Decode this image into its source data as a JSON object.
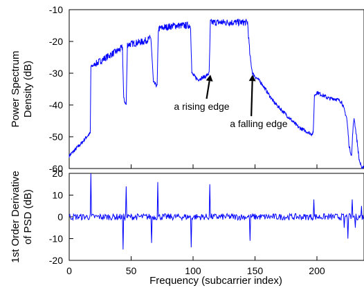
{
  "chart_data": [
    {
      "type": "line",
      "ylabel_lines": [
        "Power Spectrum",
        "Density (dB)"
      ],
      "xlim": [
        0,
        238
      ],
      "ylim": [
        -60,
        -10
      ],
      "yticks": [
        "-60",
        "-50",
        "-40",
        "-30",
        "-20",
        "-10"
      ],
      "grid": false,
      "color": "#0000ff",
      "series": [
        {
          "x": [
            0,
            5,
            10,
            14,
            17,
            17.5,
            30,
            43,
            44,
            46,
            47,
            60,
            66,
            68,
            71,
            72,
            85,
            98,
            99,
            101,
            104,
            110,
            113,
            114,
            130,
            144,
            146,
            148,
            150,
            155,
            160,
            165,
            170,
            175,
            180,
            185,
            190,
            195,
            197,
            198,
            200,
            205,
            210,
            215,
            220,
            224,
            225,
            226,
            228,
            229,
            230,
            232,
            234,
            236,
            238
          ],
          "y": [
            -56,
            -54,
            -52,
            -50,
            -49,
            -28,
            -25,
            -22,
            -38,
            -40,
            -21,
            -20,
            -19,
            -33,
            -34,
            -16,
            -15,
            -15,
            -30,
            -31,
            -32,
            -31,
            -30,
            -14,
            -14,
            -14,
            -25,
            -30,
            -31,
            -33,
            -36,
            -39,
            -41,
            -43,
            -45,
            -47,
            -48,
            -49,
            -49,
            -37,
            -36,
            -37,
            -38,
            -38,
            -39,
            -44,
            -48,
            -53,
            -56,
            -48,
            -44,
            -50,
            -57,
            -60,
            -59
          ]
        }
      ],
      "annotations": [
        {
          "text": "a rising edge",
          "x": 114,
          "y": -30.5,
          "text_x": 107,
          "text_y": -41.5
        },
        {
          "text": "a falling edge",
          "x": 148,
          "y": -30.5,
          "text_x": 153,
          "text_y": -47
        }
      ]
    },
    {
      "type": "line",
      "xlabel": "Frequency (subcarrier index)",
      "ylabel_lines": [
        "1st Order Derivative",
        "of PSD (dB)"
      ],
      "xlim": [
        0,
        238
      ],
      "ylim": [
        -20,
        20
      ],
      "xticks": [
        0,
        50,
        100,
        150,
        200
      ],
      "yticks": [
        "-20",
        "-10",
        "0",
        "10",
        "20"
      ],
      "grid": false,
      "color": "#0000ff",
      "series": [
        {
          "spikes": [
            {
              "x": 17.5,
              "y": 20
            },
            {
              "x": 43.5,
              "y": -15
            },
            {
              "x": 46,
              "y": 14
            },
            {
              "x": 66.5,
              "y": -12
            },
            {
              "x": 71.5,
              "y": 16
            },
            {
              "x": 98.5,
              "y": -14
            },
            {
              "x": 113.5,
              "y": 15
            },
            {
              "x": 146,
              "y": -11
            },
            {
              "x": 197.5,
              "y": 8
            },
            {
              "x": 222,
              "y": -5
            },
            {
              "x": 225,
              "y": -10
            },
            {
              "x": 228.5,
              "y": 8
            },
            {
              "x": 231,
              "y": -5
            },
            {
              "x": 236,
              "y": 5
            }
          ],
          "baseline_noise_db": 1.5
        }
      ]
    }
  ]
}
